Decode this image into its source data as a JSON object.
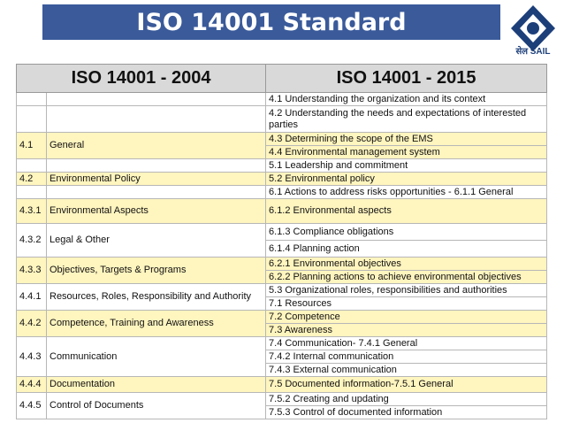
{
  "header": {
    "title": "ISO 14001 Standard",
    "logo_text": "सेल SAIL"
  },
  "table": {
    "col_left": "ISO 14001 - 2004",
    "col_right": "ISO 14001 - 2015",
    "rows": [
      {
        "code": "",
        "name": "",
        "right": "4.1 Understanding the organization and its context",
        "hl": false
      },
      {
        "code": "",
        "name": "",
        "right": "4.2 Understanding the needs and expectations of interested parties",
        "hl": false
      },
      {
        "code": "4.1",
        "name": "General",
        "right": "4.3 Determining the scope of the EMS",
        "hl": true
      },
      {
        "code": "",
        "name": "",
        "right": "4.4 Environmental management system",
        "hl": true,
        "cont": true
      },
      {
        "code": "",
        "name": "",
        "right": "5.1 Leadership and commitment",
        "hl": false
      },
      {
        "code": "4.2",
        "name": "Environmental Policy",
        "right": "5.2 Environmental policy",
        "hl": true
      },
      {
        "code": "",
        "name": "",
        "right": "6.1 Actions to address risks opportunities - 6.1.1 General",
        "hl": false
      },
      {
        "code": "4.3.1",
        "name": "Environmental Aspects",
        "right": "6.1.2 Environmental aspects",
        "hl": true
      },
      {
        "code": "4.3.2",
        "name": "Legal & Other",
        "right": "6.1.3 Compliance obligations",
        "hl": false
      },
      {
        "code": "",
        "name": "",
        "right": "6.1.4 Planning action",
        "hl": false,
        "cont": true
      },
      {
        "code": "4.3.3",
        "name": "Objectives, Targets & Programs",
        "right": "6.2.1 Environmental objectives",
        "hl": true
      },
      {
        "code": "",
        "name": "",
        "right": "6.2.2 Planning actions to achieve environmental objectives",
        "hl": true,
        "cont": true
      },
      {
        "code": "4.4.1",
        "name": "Resources, Roles, Responsibility and Authority",
        "right": "5.3 Organizational roles, responsibilities and authorities",
        "hl": false
      },
      {
        "code": "",
        "name": "",
        "right": "7.1 Resources",
        "hl": false,
        "cont": true
      },
      {
        "code": "4.4.2",
        "name": "Competence, Training and Awareness",
        "right": "7.2 Competence",
        "hl": true
      },
      {
        "code": "",
        "name": "",
        "right": "7.3 Awareness",
        "hl": true,
        "cont": true
      },
      {
        "code": "4.4.3",
        "name": "Communication",
        "right": "7.4 Communication- 7.4.1 General",
        "hl": false
      },
      {
        "code": "",
        "name": "",
        "right": "7.4.2 Internal communication",
        "hl": false,
        "cont": true
      },
      {
        "code": "",
        "name": "",
        "right": "7.4.3 External communication",
        "hl": false,
        "cont": true
      },
      {
        "code": "4.4.4",
        "name": "Documentation",
        "right": "7.5 Documented information-7.5.1 General",
        "hl": true
      },
      {
        "code": "4.4.5",
        "name": "Control of Documents",
        "right": "7.5.2 Creating and updating",
        "hl": false
      },
      {
        "code": "",
        "name": "",
        "right": "7.5.3 Control of documented information",
        "hl": false,
        "cont": true
      }
    ]
  }
}
